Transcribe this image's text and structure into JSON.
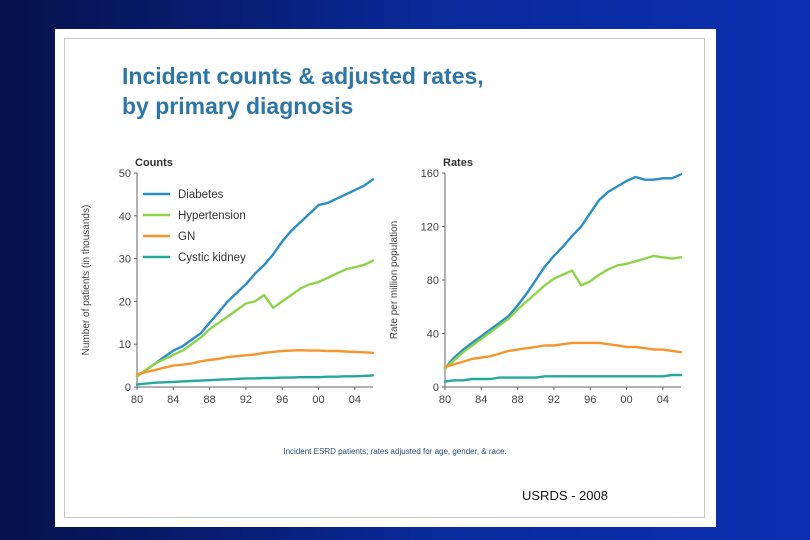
{
  "title_line1": "Incident counts & adjusted rates,",
  "title_line2": "by primary diagnosis",
  "footnote": "Incident ESRD patients; rates adjusted for age, gender, & race.",
  "source": "USRDS - 2008",
  "colors": {
    "Diabetes": "#2a8fc7",
    "Hypertension": "#8dd44a",
    "GN": "#f5962c",
    "Cystic kidney": "#22a99a"
  },
  "chart_data": [
    {
      "type": "line",
      "title": "Counts",
      "ylabel": "Number of patients (in thousands)",
      "xlabel": "",
      "xlim": [
        1980,
        2006
      ],
      "ylim": [
        0,
        50
      ],
      "x_ticks": [
        1980,
        1984,
        1988,
        1992,
        1996,
        2000,
        2004
      ],
      "x_tick_labels": [
        "80",
        "84",
        "88",
        "92",
        "96",
        "00",
        "04"
      ],
      "y_ticks": [
        0,
        10,
        20,
        30,
        40,
        50
      ],
      "y_tick_labels": [
        "0",
        "10",
        "20",
        "30",
        "40",
        "50"
      ],
      "legend": [
        "Diabetes",
        "Hypertension",
        "GN",
        "Cystic kidney"
      ],
      "legend_position": "top-left",
      "x": [
        1980,
        1981,
        1982,
        1983,
        1984,
        1985,
        1986,
        1987,
        1988,
        1989,
        1990,
        1991,
        1992,
        1993,
        1994,
        1995,
        1996,
        1997,
        1998,
        1999,
        2000,
        2001,
        2002,
        2003,
        2004,
        2005,
        2006
      ],
      "series": [
        {
          "name": "Diabetes",
          "values": [
            2.5,
            4.0,
            5.5,
            7.0,
            8.5,
            9.5,
            11.0,
            12.5,
            15.0,
            17.5,
            20.0,
            22.0,
            24.0,
            26.5,
            28.5,
            31.0,
            34.0,
            36.5,
            38.5,
            40.5,
            42.5,
            43.0,
            44.0,
            45.0,
            46.0,
            47.0,
            48.5
          ]
        },
        {
          "name": "Hypertension",
          "values": [
            2.5,
            4.0,
            5.5,
            6.5,
            7.5,
            8.5,
            10.0,
            11.5,
            13.5,
            15.0,
            16.5,
            18.0,
            19.5,
            20.0,
            21.5,
            18.5,
            20.0,
            21.5,
            23.0,
            24.0,
            24.5,
            25.5,
            26.5,
            27.5,
            28.0,
            28.5,
            29.5
          ]
        },
        {
          "name": "GN",
          "values": [
            3.0,
            3.5,
            4.0,
            4.5,
            5.0,
            5.2,
            5.5,
            6.0,
            6.3,
            6.6,
            7.0,
            7.2,
            7.4,
            7.6,
            8.0,
            8.2,
            8.4,
            8.5,
            8.6,
            8.5,
            8.5,
            8.4,
            8.4,
            8.3,
            8.2,
            8.1,
            8.0
          ]
        },
        {
          "name": "Cystic kidney",
          "values": [
            0.6,
            0.8,
            1.0,
            1.1,
            1.2,
            1.3,
            1.4,
            1.5,
            1.6,
            1.7,
            1.8,
            1.9,
            2.0,
            2.0,
            2.1,
            2.1,
            2.2,
            2.2,
            2.3,
            2.3,
            2.3,
            2.4,
            2.4,
            2.5,
            2.5,
            2.6,
            2.7
          ]
        }
      ]
    },
    {
      "type": "line",
      "title": "Rates",
      "ylabel": "Rate per million population",
      "xlabel": "",
      "xlim": [
        1980,
        2006
      ],
      "ylim": [
        0,
        160
      ],
      "x_ticks": [
        1980,
        1984,
        1988,
        1992,
        1996,
        2000,
        2004
      ],
      "x_tick_labels": [
        "80",
        "84",
        "88",
        "92",
        "96",
        "00",
        "04"
      ],
      "y_ticks": [
        0,
        40,
        80,
        120,
        160
      ],
      "y_tick_labels": [
        "0",
        "40",
        "80",
        "120",
        "160"
      ],
      "x": [
        1980,
        1981,
        1982,
        1983,
        1984,
        1985,
        1986,
        1987,
        1988,
        1989,
        1990,
        1991,
        1992,
        1993,
        1994,
        1995,
        1996,
        1997,
        1998,
        1999,
        2000,
        2001,
        2002,
        2003,
        2004,
        2005,
        2006
      ],
      "series": [
        {
          "name": "Diabetes",
          "values": [
            14,
            22,
            28,
            33,
            38,
            43,
            48,
            53,
            61,
            70,
            80,
            90,
            98,
            105,
            113,
            120,
            130,
            140,
            146,
            150,
            154,
            157,
            155,
            155,
            156,
            156,
            159
          ]
        },
        {
          "name": "Hypertension",
          "values": [
            14,
            20,
            26,
            31,
            36,
            41,
            46,
            51,
            58,
            64,
            70,
            76,
            81,
            84,
            87,
            76,
            79,
            84,
            88,
            91,
            92,
            94,
            96,
            98,
            97,
            96,
            97
          ]
        },
        {
          "name": "GN",
          "values": [
            15,
            17,
            19,
            21,
            22,
            23,
            25,
            27,
            28,
            29,
            30,
            31,
            31,
            32,
            33,
            33,
            33,
            33,
            32,
            31,
            30,
            30,
            29,
            28,
            28,
            27,
            26
          ]
        },
        {
          "name": "Cystic kidney",
          "values": [
            4,
            5,
            5,
            6,
            6,
            6,
            7,
            7,
            7,
            7,
            7,
            8,
            8,
            8,
            8,
            8,
            8,
            8,
            8,
            8,
            8,
            8,
            8,
            8,
            8,
            9,
            9
          ]
        }
      ]
    }
  ]
}
